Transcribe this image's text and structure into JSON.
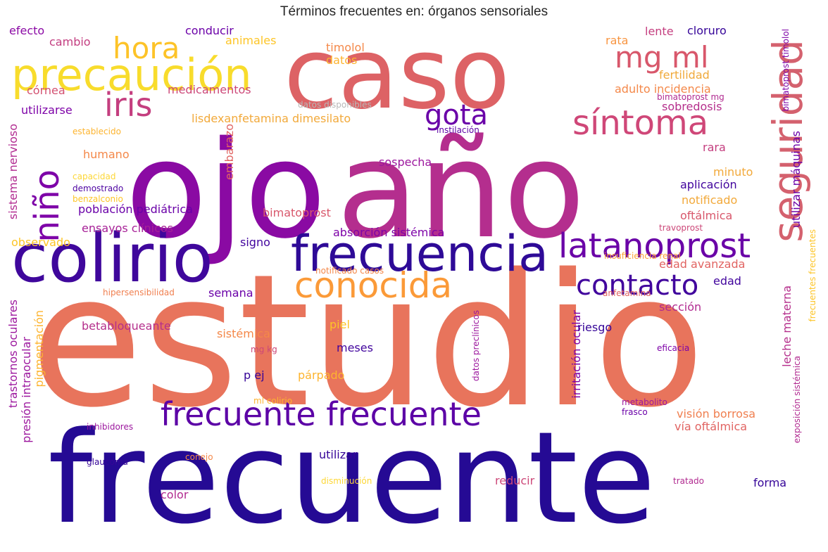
{
  "chart_data": {
    "type": "wordcloud",
    "title": "Términos frecuentes en: órganos sensoriales",
    "colormap": "plasma",
    "words": [
      {
        "text": "frecuente",
        "color": "#250a94"
      },
      {
        "text": "estudio",
        "color": "#e8745c"
      },
      {
        "text": "ojo",
        "color": "#8a0aa3"
      },
      {
        "text": "año",
        "color": "#b42e8e"
      },
      {
        "text": "caso",
        "color": "#dd6265"
      },
      {
        "text": "colirio",
        "color": "#3f079c"
      },
      {
        "text": "frecuencia",
        "color": "#2e0a97"
      },
      {
        "text": "precaución",
        "color": "#f8dc2c"
      },
      {
        "text": "seguridad",
        "color": "#d4616e"
      },
      {
        "text": "síntoma",
        "color": "#cf4778"
      },
      {
        "text": "mg ml",
        "color": "#d8576b"
      },
      {
        "text": "latanoprost",
        "color": "#6a02a7"
      },
      {
        "text": "conocida",
        "color": "#fb9a38"
      },
      {
        "text": "contacto",
        "color": "#41049d"
      },
      {
        "text": "frecuente frecuente",
        "color": "#5c01a6"
      },
      {
        "text": "niño",
        "color": "#7e03a8"
      },
      {
        "text": "hora",
        "color": "#fdc328"
      },
      {
        "text": "iris",
        "color": "#c43e7f"
      },
      {
        "text": "gota",
        "color": "#6a00a8"
      },
      {
        "text": "efecto",
        "color": "#8b0aa5"
      },
      {
        "text": "cambio",
        "color": "#c33d80"
      },
      {
        "text": "conducir",
        "color": "#6b00a8"
      },
      {
        "text": "animales",
        "color": "#fdc527"
      },
      {
        "text": "rata",
        "color": "#f89540"
      },
      {
        "text": "lente",
        "color": "#c43e7f"
      },
      {
        "text": "cloruro",
        "color": "#350498"
      },
      {
        "text": "timolol",
        "color": "#f48849"
      },
      {
        "text": "datos",
        "color": "#fdb42f"
      },
      {
        "text": "córnea",
        "color": "#d35171"
      },
      {
        "text": "medicamentos",
        "color": "#cc4778"
      },
      {
        "text": "fertilidad",
        "color": "#f0a93a"
      },
      {
        "text": "adulto incidencia",
        "color": "#f48849"
      },
      {
        "text": "bimatoprost mg",
        "color": "#b12a90"
      },
      {
        "text": "utilizarse",
        "color": "#7e03a8"
      },
      {
        "text": "datos disponibles",
        "color": "#b9b9b9"
      },
      {
        "text": "sobredosis",
        "color": "#b52f8c"
      },
      {
        "text": "lisdexanfetamina dimesilato",
        "color": "#f2a93a"
      },
      {
        "text": "instilación",
        "color": "#5c01a6"
      },
      {
        "text": "establecido",
        "color": "#fdb42f"
      },
      {
        "text": "humano",
        "color": "#f48849"
      },
      {
        "text": "rara",
        "color": "#c43e7f"
      },
      {
        "text": "sospecha",
        "color": "#9c179e"
      },
      {
        "text": "sistema nervioso",
        "color": "#b12a90"
      },
      {
        "text": "capacidad",
        "color": "#fdd736"
      },
      {
        "text": "demostrado",
        "color": "#4c02a1"
      },
      {
        "text": "benzalconio",
        "color": "#fdc527"
      },
      {
        "text": "embarazo",
        "color": "#e16462"
      },
      {
        "text": "minuto",
        "color": "#f2a93a"
      },
      {
        "text": "aplicación",
        "color": "#41049d"
      },
      {
        "text": "notificado",
        "color": "#f2a93a"
      },
      {
        "text": "utilizar máquinas",
        "color": "#6a00a8"
      },
      {
        "text": "población pediátrica",
        "color": "#6a00a8"
      },
      {
        "text": "bimatoprost",
        "color": "#d8576b"
      },
      {
        "text": "oftálmica",
        "color": "#d8576b"
      },
      {
        "text": "ensayos clínicos",
        "color": "#a72197"
      },
      {
        "text": "absorción sistémica",
        "color": "#7e03a8"
      },
      {
        "text": "travoprost",
        "color": "#cc4778"
      },
      {
        "text": "observado",
        "color": "#fdc527"
      },
      {
        "text": "signo",
        "color": "#41049d"
      },
      {
        "text": "insuficiencia renal",
        "color": "#fba238"
      },
      {
        "text": "edad avanzada",
        "color": "#e16462"
      },
      {
        "text": "notificado casos",
        "color": "#f48849"
      },
      {
        "text": "semana",
        "color": "#6a00a8"
      },
      {
        "text": "hipersensibilidad",
        "color": "#f07f4f"
      },
      {
        "text": "anfetamina",
        "color": "#e16462"
      },
      {
        "text": "edad",
        "color": "#41049d"
      },
      {
        "text": "sección",
        "color": "#b12a90"
      },
      {
        "text": "frecuentes frecuentes",
        "color": "#fdc527"
      },
      {
        "text": "trastornos oculares",
        "color": "#9c179e"
      },
      {
        "text": "sistémica",
        "color": "#f48849"
      },
      {
        "text": "piel",
        "color": "#fdc527"
      },
      {
        "text": "irritación ocular",
        "color": "#7e03a8"
      },
      {
        "text": "riesgo",
        "color": "#350498"
      },
      {
        "text": "leche materna",
        "color": "#b52f8c"
      },
      {
        "text": "presión intraocular",
        "color": "#9c179e"
      },
      {
        "text": "pigmentación",
        "color": "#fdb42f"
      },
      {
        "text": "betabloqueante",
        "color": "#b52f8c"
      },
      {
        "text": "meses",
        "color": "#41049d"
      },
      {
        "text": "mg kg",
        "color": "#cc4778"
      },
      {
        "text": "p ej",
        "color": "#350498"
      },
      {
        "text": "párpado",
        "color": "#fdb42f"
      },
      {
        "text": "datos preclínicos",
        "color": "#9c179e"
      },
      {
        "text": "eficacia",
        "color": "#7e03a8"
      },
      {
        "text": "ml colirio",
        "color": "#fdb42f"
      },
      {
        "text": "metabolito",
        "color": "#9c179e"
      },
      {
        "text": "visión borrosa",
        "color": "#f07f4f"
      },
      {
        "text": "frasco",
        "color": "#6a00a8"
      },
      {
        "text": "vía oftálmica",
        "color": "#e16462"
      },
      {
        "text": "exposición sistémica",
        "color": "#b12a90"
      },
      {
        "text": "inhibidores",
        "color": "#9c179e"
      },
      {
        "text": "glaucoma",
        "color": "#350498"
      },
      {
        "text": "conejo",
        "color": "#f48849"
      },
      {
        "text": "utilizar",
        "color": "#350498"
      },
      {
        "text": "disminución",
        "color": "#fdd736"
      },
      {
        "text": "reducir",
        "color": "#cc4778"
      },
      {
        "text": "tratado",
        "color": "#b12a90"
      },
      {
        "text": "forma",
        "color": "#350498"
      },
      {
        "text": "color",
        "color": "#b12a90"
      },
      {
        "text": "bimatoprost timolol",
        "color": "#7e03a8"
      }
    ]
  }
}
